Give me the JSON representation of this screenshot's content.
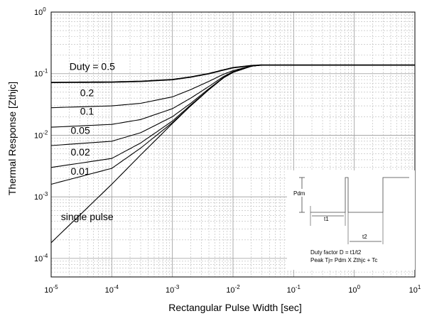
{
  "chart_data": {
    "type": "line",
    "xlabel": "Rectangular Pulse Width [sec]",
    "ylabel": "Thermal Response [Zthjc]",
    "x_scale": "log",
    "y_scale": "log",
    "xlim": [
      1e-05,
      10
    ],
    "ylim": [
      5e-05,
      1
    ],
    "grid": true,
    "x_ticks": [
      {
        "value": 1e-05,
        "base": "10",
        "exp": "-5"
      },
      {
        "value": 0.0001,
        "base": "10",
        "exp": "-4"
      },
      {
        "value": 0.001,
        "base": "10",
        "exp": "-3"
      },
      {
        "value": 0.01,
        "base": "10",
        "exp": "-2"
      },
      {
        "value": 0.1,
        "base": "10",
        "exp": "-1"
      },
      {
        "value": 1,
        "base": "10",
        "exp": "0"
      },
      {
        "value": 10,
        "base": "10",
        "exp": "1"
      }
    ],
    "y_ticks": [
      {
        "value": 0.0001,
        "base": "10",
        "exp": "-4"
      },
      {
        "value": 0.001,
        "base": "10",
        "exp": "-3"
      },
      {
        "value": 0.01,
        "base": "10",
        "exp": "-2"
      },
      {
        "value": 0.1,
        "base": "10",
        "exp": "-1"
      },
      {
        "value": 1,
        "base": "10",
        "exp": "0"
      }
    ],
    "series": [
      {
        "label": "Duty = 0.5",
        "duty": 0.5,
        "x": [
          1e-05,
          0.0001,
          0.0003,
          0.001,
          0.002,
          0.004,
          0.007,
          0.01,
          0.02,
          0.03,
          10
        ],
        "y": [
          0.072,
          0.073,
          0.075,
          0.08,
          0.088,
          0.1,
          0.115,
          0.125,
          0.135,
          0.138,
          0.138
        ]
      },
      {
        "label": "0.2",
        "duty": 0.2,
        "x": [
          1e-05,
          0.0001,
          0.0003,
          0.001,
          0.002,
          0.004,
          0.007,
          0.01,
          0.02,
          0.03,
          10
        ],
        "y": [
          0.028,
          0.03,
          0.033,
          0.042,
          0.055,
          0.075,
          0.098,
          0.112,
          0.133,
          0.138,
          0.138
        ]
      },
      {
        "label": "0.1",
        "duty": 0.1,
        "x": [
          1e-05,
          0.0001,
          0.0003,
          0.001,
          0.002,
          0.004,
          0.007,
          0.01,
          0.02,
          0.03,
          10
        ],
        "y": [
          0.0135,
          0.015,
          0.018,
          0.027,
          0.04,
          0.062,
          0.09,
          0.108,
          0.132,
          0.138,
          0.138
        ]
      },
      {
        "label": "0.05",
        "duty": 0.05,
        "x": [
          1e-05,
          0.0001,
          0.0003,
          0.001,
          0.002,
          0.004,
          0.007,
          0.01,
          0.02,
          0.03,
          10
        ],
        "y": [
          0.0068,
          0.008,
          0.011,
          0.02,
          0.033,
          0.057,
          0.087,
          0.106,
          0.132,
          0.138,
          0.138
        ]
      },
      {
        "label": "0.02",
        "duty": 0.02,
        "x": [
          1e-05,
          0.0001,
          0.0003,
          0.001,
          0.002,
          0.004,
          0.007,
          0.01,
          0.02,
          0.03,
          10
        ],
        "y": [
          0.003,
          0.0042,
          0.0075,
          0.017,
          0.031,
          0.055,
          0.086,
          0.105,
          0.132,
          0.138,
          0.138
        ]
      },
      {
        "label": "0.01",
        "duty": 0.01,
        "x": [
          1e-05,
          0.0001,
          0.0003,
          0.001,
          0.002,
          0.004,
          0.007,
          0.01,
          0.02,
          0.03,
          10
        ],
        "y": [
          0.0016,
          0.0029,
          0.0062,
          0.016,
          0.03,
          0.055,
          0.086,
          0.105,
          0.132,
          0.138,
          0.138
        ]
      },
      {
        "label": "single pulse",
        "duty": 0,
        "x": [
          1e-05,
          0.0001,
          0.0003,
          0.001,
          0.002,
          0.004,
          0.007,
          0.01,
          0.02,
          0.03,
          10
        ],
        "y": [
          0.00018,
          0.0016,
          0.0048,
          0.0155,
          0.03,
          0.055,
          0.086,
          0.105,
          0.132,
          0.138,
          0.138
        ]
      }
    ],
    "inset": {
      "pdm_label": "Pdm",
      "t1_label": "t1",
      "t2_label": "t2",
      "formula_line1": "Duty factor D = t1/t2",
      "formula_line2": "Peak Tj= Pdm X Zthjc + Tc"
    }
  }
}
